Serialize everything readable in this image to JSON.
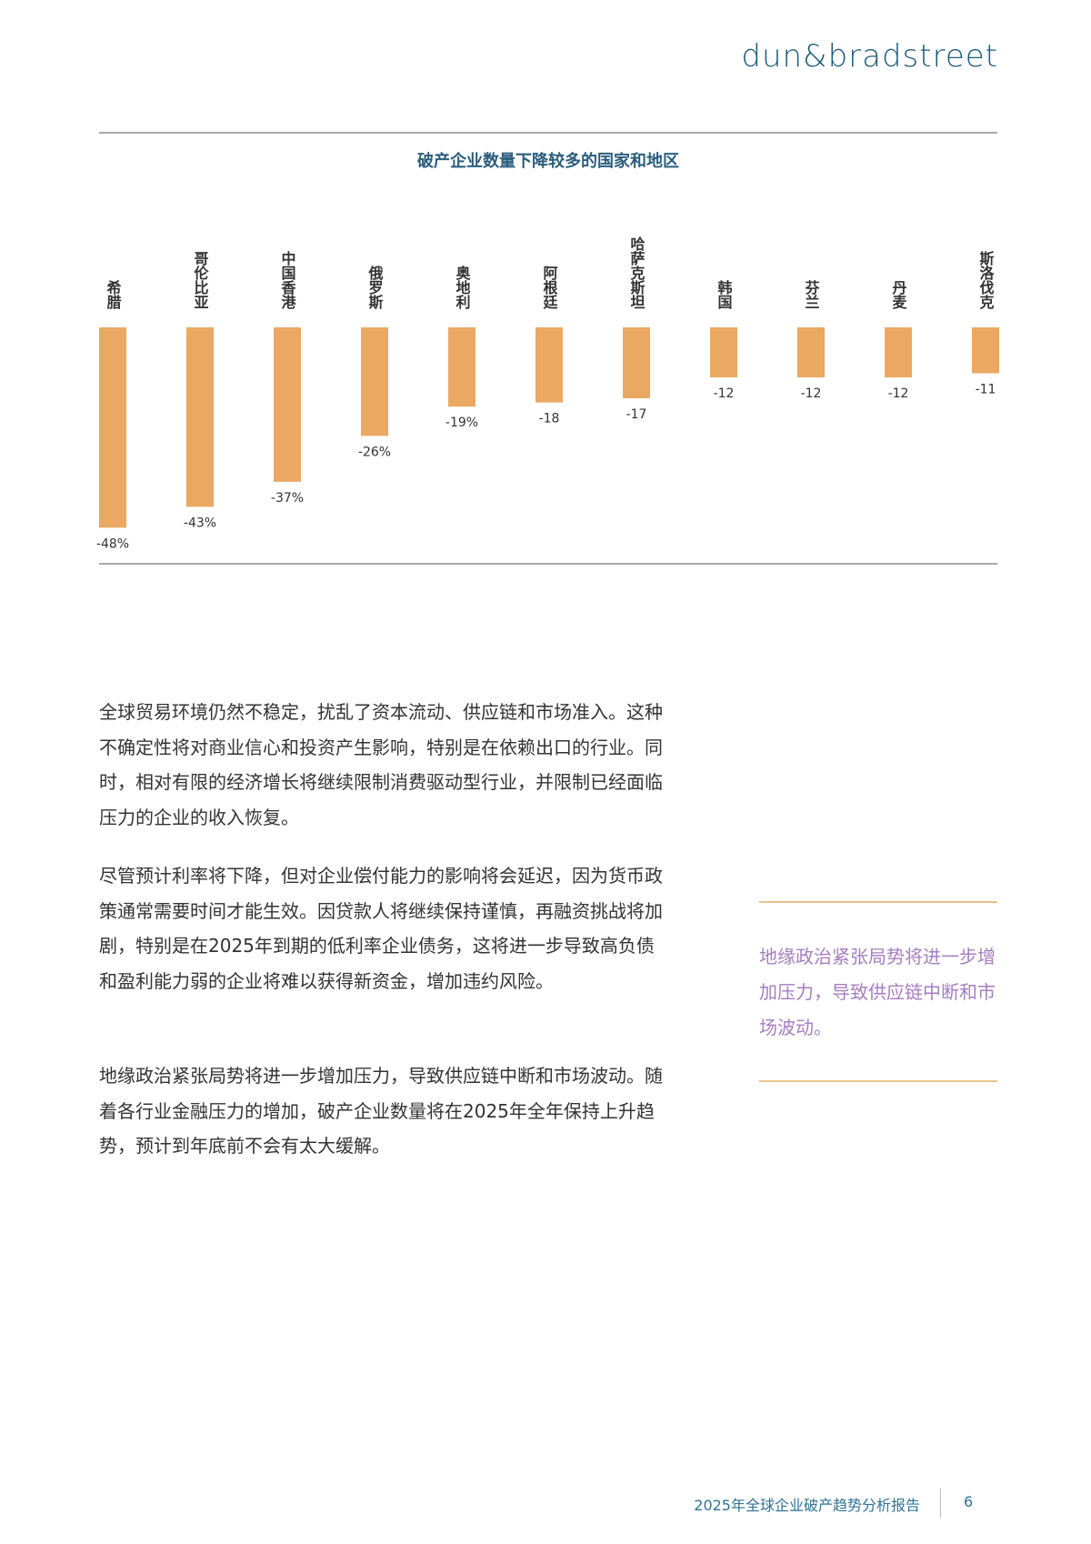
{
  "header": {
    "logo": "dun&bradstreet"
  },
  "chart_data": {
    "type": "bar",
    "title": "破产企业数量下降较多的国家和地区",
    "categories": [
      "希腊",
      "哥伦比亚",
      "中国香港",
      "俄罗斯",
      "奥地利",
      "阿根廷",
      "哈萨克斯坦",
      "韩国",
      "芬兰",
      "丹麦",
      "斯洛伐克"
    ],
    "values": [
      -48,
      -43,
      -37,
      -26,
      -19,
      -18,
      -17,
      -12,
      -12,
      -12,
      -11
    ],
    "value_labels": [
      "-48%",
      "-43%",
      "-37%",
      "-26%",
      "-19%",
      "-18",
      "-17",
      "-12",
      "-12",
      "-12",
      "-11"
    ],
    "color": "#eaa862"
  },
  "paragraphs": [
    "全球贸易环境仍然不稳定，扰乱了资本流动、供应链和市场准入。这种不确定性将对商业信心和投资产生影响，特别是在依赖出口的行业。同时，相对有限的经济增长将继续限制消费驱动型行业，并限制已经面临压力的企业的收入恢复。",
    "尽管预计利率将下降，但对企业偿付能力的影响将会延迟，因为货币政策通常需要时间才能生效。因贷款人将继续保持谨慎，再融资挑战将加剧，特别是在2025年到期的低利率企业债务，这将进一步导致高负债和盈利能力弱的企业将难以获得新资金，增加违约风险。",
    "地缘政治紧张局势将进一步增加压力，导致供应链中断和市场波动。随着各行业金融压力的增加，破产企业数量将在2025年全年保持上升趋势，预计到年底前不会有太大缓解。"
  ],
  "quote": "地缘政治紧张局势将进一步增加压力，导致供应链中断和市场波动。",
  "footer": {
    "title": "2025年全球企业破产趋势分析报告",
    "page": "6"
  }
}
